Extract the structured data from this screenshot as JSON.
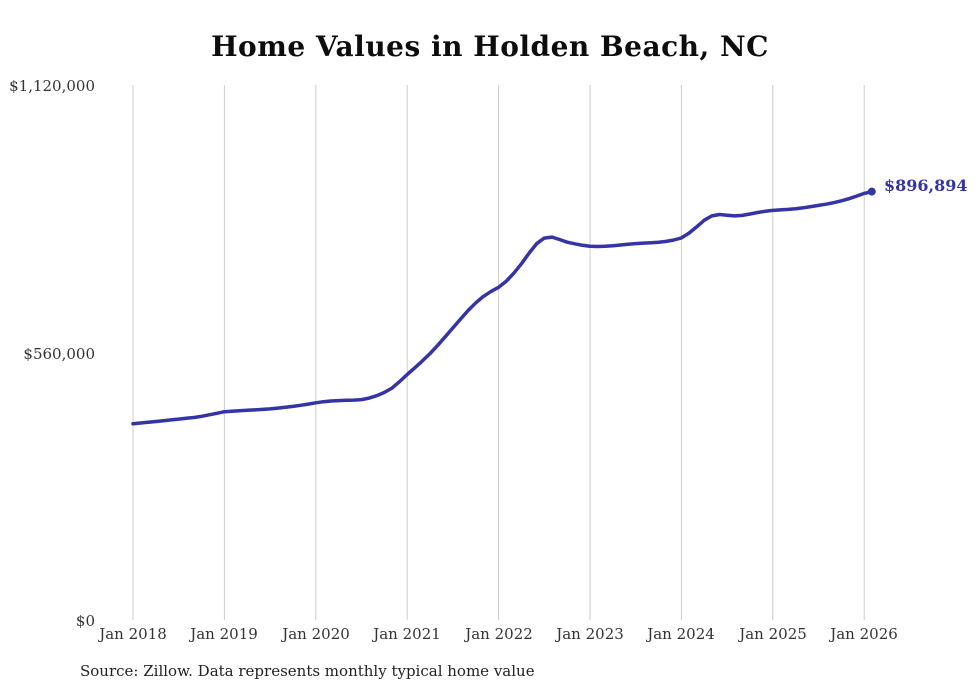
{
  "title": "Home Values in Holden Beach, NC",
  "source_note": "Source: Zillow. Data represents monthly typical home value",
  "end_label": "$896,894",
  "colors": {
    "line": "#3533a8",
    "gridline": "#cccccc",
    "text": "#333333"
  },
  "chart_data": {
    "type": "line",
    "title": "Home Values in Holden Beach, NC",
    "xlabel": "",
    "ylabel": "",
    "ylim": [
      0,
      1120000
    ],
    "grid": "vertical-yearly",
    "legend": "none",
    "final_value": 896894,
    "frequency": "monthly",
    "start_month": "2018-01",
    "y_tick_labels": [
      "$1,120,000",
      "$560,000",
      "$0"
    ],
    "x_tick_labels": [
      "Jan 2018",
      "Jan 2019",
      "Jan 2020",
      "Jan 2021",
      "Jan 2022",
      "Jan 2023",
      "Jan 2024",
      "Jan 2025",
      "Jan 2026"
    ],
    "values": [
      411000,
      412500,
      414000,
      415600,
      417200,
      418800,
      420500,
      422200,
      424000,
      426500,
      429500,
      432800,
      436000,
      437200,
      438100,
      438900,
      439800,
      440800,
      442000,
      443500,
      445200,
      447200,
      449500,
      452000,
      454800,
      456900,
      458400,
      459400,
      460000,
      460300,
      461500,
      464500,
      469500,
      476500,
      485500,
      499000,
      514000,
      528000,
      542500,
      558000,
      575000,
      593000,
      611500,
      630000,
      648000,
      664000,
      677500,
      688000,
      696500,
      709000,
      726000,
      746000,
      768000,
      788000,
      799500,
      801500,
      796500,
      791000,
      787500,
      784500,
      782500,
      782000,
      782500,
      783500,
      785000,
      786500,
      788000,
      789000,
      789800,
      790800,
      792500,
      795500,
      800000,
      810000,
      823000,
      837000,
      846000,
      849000,
      847500,
      846000,
      847000,
      850000,
      853000,
      855500,
      857500,
      858500,
      859500,
      861000,
      863000,
      865500,
      868000,
      870500,
      873500,
      877500,
      882000,
      887500,
      893000,
      896894
    ]
  }
}
